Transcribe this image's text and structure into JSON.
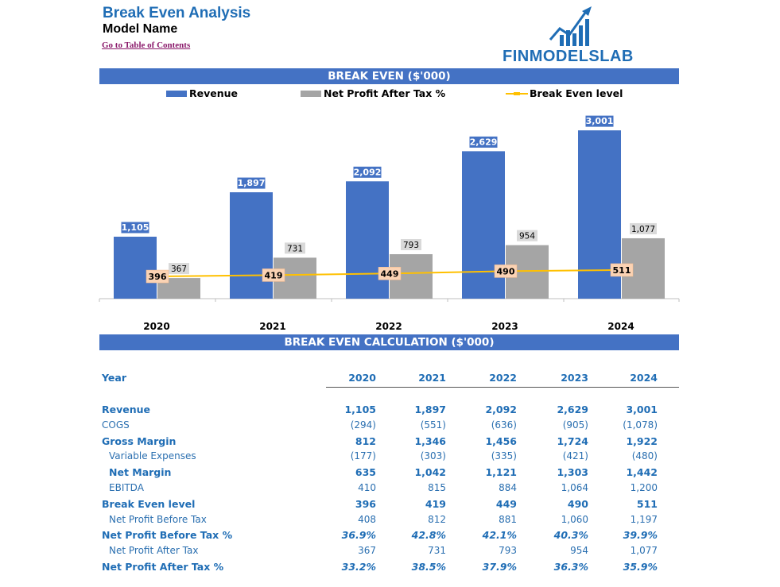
{
  "header": {
    "title": "Break Even Analysis",
    "model_name": "Model Name",
    "toc_link": "Go to Table of Contents",
    "logo_text": "FINMODELSLAB"
  },
  "chart_section_title": "BREAK EVEN ($'000)",
  "calc_section_title": "BREAK EVEN CALCULATION ($'000)",
  "colors": {
    "revenue": "#4472c4",
    "profit": "#a5a5a5",
    "break_even": "#ffc000",
    "header": "#4472c4",
    "text_blue": "#1f6db5"
  },
  "chart_data": {
    "type": "bar",
    "categories": [
      "2020",
      "2021",
      "2022",
      "2023",
      "2024"
    ],
    "series": [
      {
        "name": "Revenue",
        "type": "bar",
        "values": [
          1105,
          1897,
          2092,
          2629,
          3001
        ],
        "labels": [
          "1,105",
          "1,897",
          "2,092",
          "2,629",
          "3,001"
        ]
      },
      {
        "name": "Net Profit After Tax %",
        "type": "bar",
        "values": [
          367,
          731,
          793,
          954,
          1077
        ],
        "labels": [
          "367",
          "731",
          "793",
          "954",
          "1,077"
        ]
      },
      {
        "name": "Break Even level",
        "type": "line",
        "values": [
          396,
          419,
          449,
          490,
          511
        ],
        "labels": [
          "396",
          "419",
          "449",
          "490",
          "511"
        ]
      }
    ],
    "ylim": [
      0,
      3300
    ],
    "grid": false,
    "legend": "top"
  },
  "table": {
    "year_label": "Year",
    "years": [
      "2020",
      "2021",
      "2022",
      "2023",
      "2024"
    ],
    "rows": [
      {
        "label": "Revenue",
        "style": "bold",
        "values": [
          "1,105",
          "1,897",
          "2,092",
          "2,629",
          "3,001"
        ]
      },
      {
        "label": "COGS",
        "style": "light",
        "values": [
          "(294)",
          "(551)",
          "(636)",
          "(905)",
          "(1,078)"
        ]
      },
      {
        "label": "Gross Margin",
        "style": "bold",
        "values": [
          "812",
          "1,346",
          "1,456",
          "1,724",
          "1,922"
        ]
      },
      {
        "label": "Variable Expenses",
        "style": "light indent",
        "values": [
          "(177)",
          "(303)",
          "(335)",
          "(421)",
          "(480)"
        ]
      },
      {
        "label": "Net Margin",
        "style": "bold indent",
        "values": [
          "635",
          "1,042",
          "1,121",
          "1,303",
          "1,442"
        ]
      },
      {
        "label": "EBITDA",
        "style": "light indent",
        "values": [
          "410",
          "815",
          "884",
          "1,064",
          "1,200"
        ]
      },
      {
        "label": "Break Even level",
        "style": "bold",
        "values": [
          "396",
          "419",
          "449",
          "490",
          "511"
        ]
      },
      {
        "label": "Net Profit Before Tax",
        "style": "light indent",
        "values": [
          "408",
          "812",
          "881",
          "1,060",
          "1,197"
        ]
      },
      {
        "label": "Net Profit Before Tax %",
        "style": "bold italic",
        "values": [
          "36.9%",
          "42.8%",
          "42.1%",
          "40.3%",
          "39.9%"
        ]
      },
      {
        "label": "Net Profit After Tax",
        "style": "light indent",
        "values": [
          "367",
          "731",
          "793",
          "954",
          "1,077"
        ]
      },
      {
        "label": "Net Profit After Tax %",
        "style": "bold italic",
        "values": [
          "33.2%",
          "38.5%",
          "37.9%",
          "36.3%",
          "35.9%"
        ]
      }
    ]
  }
}
